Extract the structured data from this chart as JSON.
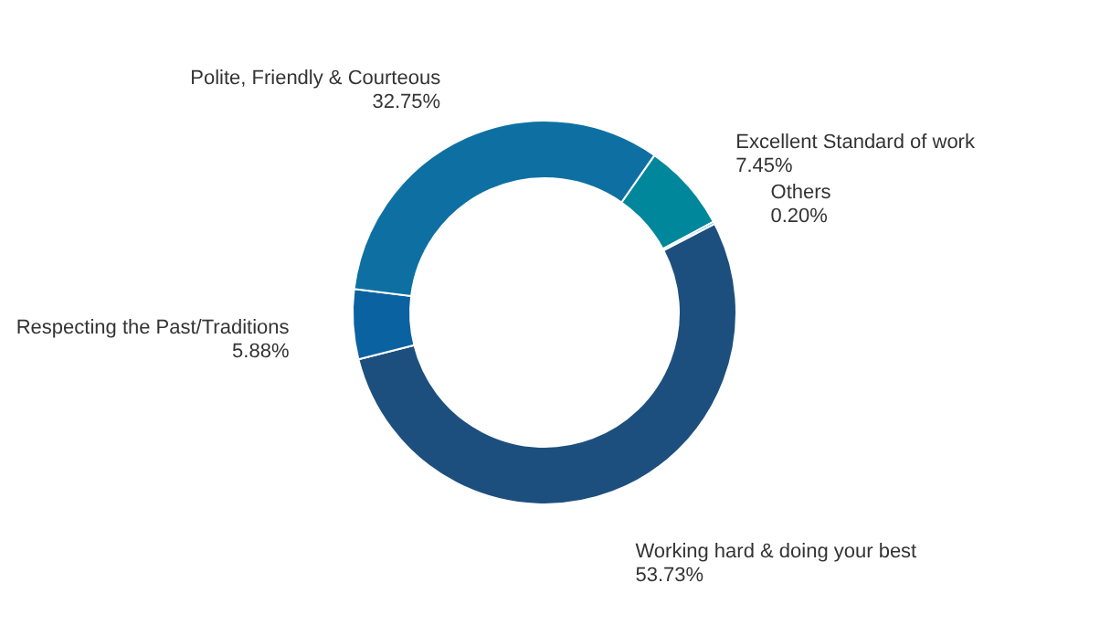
{
  "chart_data": {
    "type": "donut",
    "categories": [
      "Excellent Standard of work",
      "Others",
      "Working hard & doing your best",
      "Respecting the Past/Traditions",
      "Polite, Friendly & Courteous"
    ],
    "values": [
      7.45,
      0.2,
      53.73,
      5.88,
      32.75
    ],
    "value_labels": [
      "7.45%",
      "0.20%",
      "53.73%",
      "5.88%",
      "32.75%"
    ],
    "colors": [
      "#00879c",
      "#2a93b8",
      "#1d4f7e",
      "#0a62a0",
      "#0e70a2"
    ]
  }
}
